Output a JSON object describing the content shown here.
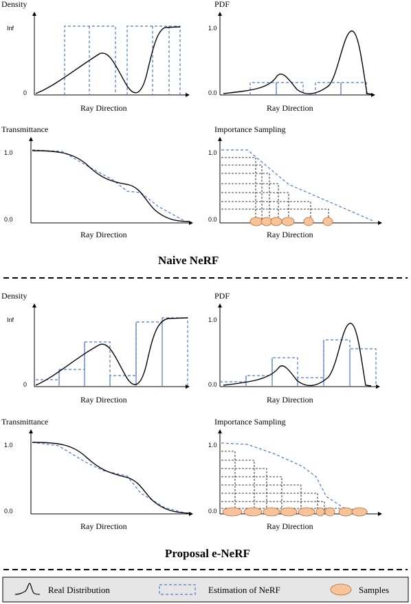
{
  "naive": {
    "title": "Naive NeRF",
    "density": {
      "label": "Density",
      "y_top": "Inf",
      "y_bottom": "0",
      "xlabel": "Ray Direction"
    },
    "pdf": {
      "label": "PDF",
      "y_top": "1.0",
      "y_bottom": "0.0",
      "xlabel": "Ray Direction"
    },
    "transmittance": {
      "label": "Transmittance",
      "y_top": "1.0",
      "y_bottom": "0.0",
      "xlabel": "Ray Direction"
    },
    "sampling": {
      "label": "Importance Sampling",
      "y_top": "1.0",
      "y_bottom": "0.0",
      "xlabel": "Ray Direction"
    }
  },
  "proposal": {
    "title": "Proposal e-NeRF",
    "density": {
      "label": "Density",
      "y_top": "Inf",
      "y_bottom": "0",
      "xlabel": "Ray Direction"
    },
    "pdf": {
      "label": "PDF",
      "y_top": "1.0",
      "y_bottom": "0.0",
      "xlabel": "Ray Direction"
    },
    "transmittance": {
      "label": "Transmittance",
      "y_top": "1.0",
      "y_bottom": "0.0",
      "xlabel": "Ray Direction"
    },
    "sampling": {
      "label": "Importance Sampling",
      "y_top": "1.0",
      "y_bottom": "0.0",
      "xlabel": "Ray Direction"
    }
  },
  "legend": {
    "real": "Real Distribution",
    "estimate": "Estimation of  NeRF",
    "samples": "Samples"
  },
  "colors": {
    "curve": "#000000",
    "estimate": "#4a78d0",
    "sample": "#f6c39a",
    "sample_stroke": "#b06a38",
    "legend_bg": "#e6e6e6"
  }
}
